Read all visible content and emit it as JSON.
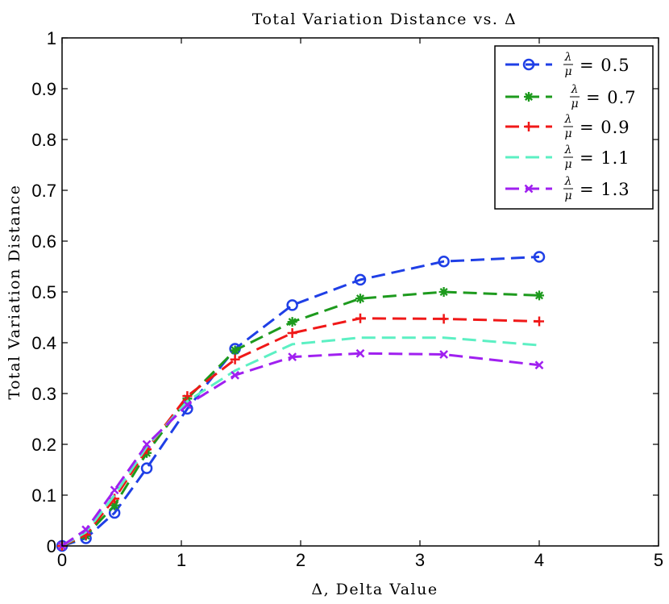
{
  "chart_data": {
    "type": "line",
    "title": "Total Variation Distance vs. Δ",
    "xlabel": "Δ, Delta Value",
    "ylabel": "Total Variation Distance",
    "xlim": [
      0,
      5
    ],
    "ylim": [
      0,
      1
    ],
    "xticks": [
      0,
      1,
      2,
      3,
      4,
      5
    ],
    "xtick_labels": [
      "0",
      "1",
      "2",
      "3",
      "4",
      "5"
    ],
    "yticks": [
      0,
      0.1,
      0.2,
      0.3,
      0.4,
      0.5,
      0.6,
      0.7,
      0.8,
      0.9,
      1
    ],
    "ytick_labels": [
      "0",
      "0.1",
      "0.2",
      "0.3",
      "0.4",
      "0.5",
      "0.6",
      "0.7",
      "0.8",
      "0.9",
      "1"
    ],
    "grid": false,
    "legend_position": "top-right",
    "x": [
      0,
      0.2,
      0.44,
      0.71,
      1.05,
      1.45,
      1.93,
      2.5,
      3.2,
      4.0
    ],
    "series": [
      {
        "name": "λ/μ = 0.5",
        "frac_num": "λ",
        "frac_den": "μ",
        "eq": "= 0.5",
        "color": "#1f3fe6",
        "marker": "circle",
        "values": [
          0.0,
          0.015,
          0.065,
          0.153,
          0.27,
          0.388,
          0.474,
          0.524,
          0.56,
          0.569
        ]
      },
      {
        "name": "λ/μ = 0.7",
        "frac_num": "λ",
        "frac_den": "μ",
        "eq": "= 0.7",
        "color": "#1d9a1d",
        "marker": "asterisk",
        "values": [
          0.0,
          0.02,
          0.08,
          0.183,
          0.29,
          0.385,
          0.441,
          0.487,
          0.5,
          0.493
        ]
      },
      {
        "name": "λ/μ = 0.9",
        "frac_num": "λ",
        "frac_den": "μ",
        "eq": "= 0.9",
        "color": "#f01818",
        "marker": "plus",
        "values": [
          0.0,
          0.022,
          0.093,
          0.19,
          0.295,
          0.367,
          0.419,
          0.448,
          0.447,
          0.442
        ]
      },
      {
        "name": "λ/μ = 1.1",
        "frac_num": "λ",
        "frac_den": "μ",
        "eq": "= 1.1",
        "color": "#5cf0c3",
        "marker": "none",
        "values": [
          0.0,
          0.027,
          0.1,
          0.195,
          0.285,
          0.345,
          0.397,
          0.41,
          0.41,
          0.395
        ]
      },
      {
        "name": "λ/μ = 1.3",
        "frac_num": "λ",
        "frac_den": "μ",
        "eq": "= 1.3",
        "color": "#a020f0",
        "marker": "x",
        "values": [
          0.0,
          0.032,
          0.11,
          0.2,
          0.278,
          0.336,
          0.372,
          0.379,
          0.377,
          0.356
        ]
      }
    ]
  }
}
